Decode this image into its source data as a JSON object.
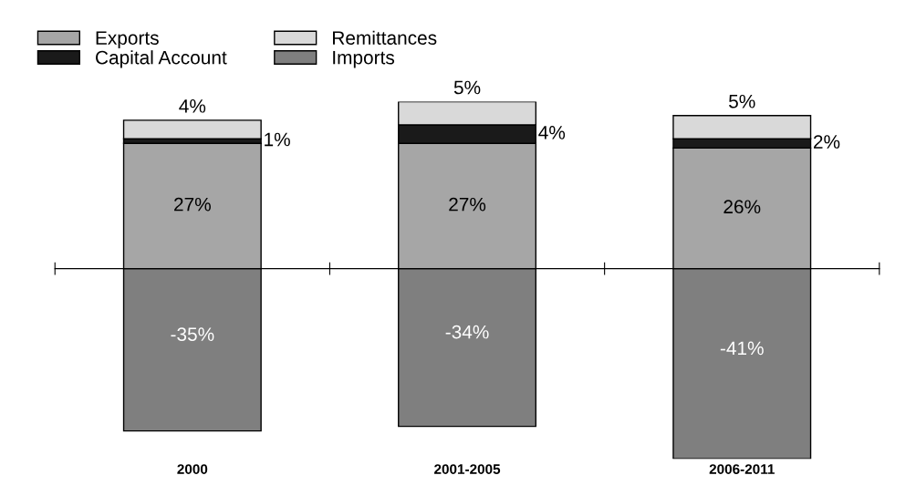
{
  "chart_data": {
    "type": "bar",
    "stacked": true,
    "legend": "top left",
    "grid": false,
    "ylim": [
      -41,
      36
    ],
    "categories": [
      "2000",
      "2001-2005",
      "2006-2011"
    ],
    "series": [
      {
        "name": "Exports",
        "color": "#a6a6a6",
        "values": [
          27,
          27,
          26
        ],
        "value_labels": [
          "27%",
          "27%",
          "26%"
        ]
      },
      {
        "name": "Capital Account",
        "color": "#1a1a1a",
        "values": [
          1,
          4,
          2
        ],
        "value_labels": [
          "1%",
          "4%",
          "2%"
        ]
      },
      {
        "name": "Remittances",
        "color": "#d9d9d9",
        "values": [
          4,
          5,
          5
        ],
        "value_labels": [
          "4%",
          "5%",
          "5%"
        ]
      },
      {
        "name": "Imports",
        "color": "#7f7f7f",
        "values": [
          -35,
          -34,
          -41
        ],
        "value_labels": [
          "-35%",
          "-34%",
          "-41%"
        ]
      }
    ]
  }
}
